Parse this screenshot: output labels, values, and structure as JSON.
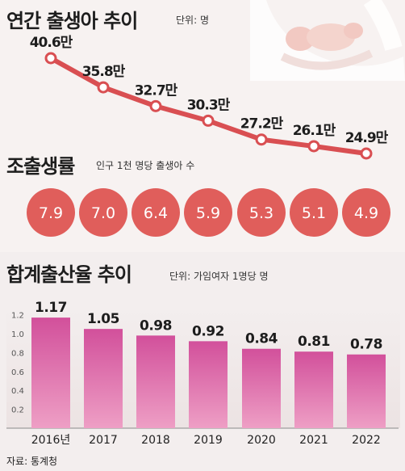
{
  "colors": {
    "line": "#d94f52",
    "circle": "#e05e5b",
    "bar_top": "#d2509b",
    "bar_bottom": "#ee9fc5"
  },
  "icons": [
    "mother-baby-illustration"
  ],
  "source": "자료: 통계청",
  "chart_data": [
    {
      "type": "line",
      "title": "연간 출생아 추이",
      "unit": "단위: 명",
      "x": [
        "2016",
        "2017",
        "2018",
        "2019",
        "2020",
        "2021",
        "2022"
      ],
      "values": [
        40.6,
        35.8,
        32.7,
        30.3,
        27.2,
        26.1,
        24.9
      ],
      "labels": [
        "40.6만",
        "35.8만",
        "32.7만",
        "30.3만",
        "27.2만",
        "26.1만",
        "24.9만"
      ]
    },
    {
      "type": "table",
      "title": "조출생률",
      "unit": "인구 1천 명당 출생아 수",
      "x": [
        "2016",
        "2017",
        "2018",
        "2019",
        "2020",
        "2021",
        "2022"
      ],
      "values": [
        "7.9",
        "7.0",
        "6.4",
        "5.9",
        "5.3",
        "5.1",
        "4.9"
      ]
    },
    {
      "type": "bar",
      "title": "합계출산율 추이",
      "unit": "단위: 가임여자 1명당 명",
      "categories": [
        "2016년",
        "2017",
        "2018",
        "2019",
        "2020",
        "2021",
        "2022"
      ],
      "values": [
        1.17,
        1.05,
        0.98,
        0.92,
        0.84,
        0.81,
        0.78
      ],
      "value_labels": [
        "1.17",
        "1.05",
        "0.98",
        "0.92",
        "0.84",
        "0.81",
        "0.78"
      ],
      "yticks": [
        "1.2",
        "1.0",
        "0.8",
        "0.6",
        "0.4",
        "0.2"
      ],
      "ylim": [
        0,
        1.25
      ]
    }
  ]
}
